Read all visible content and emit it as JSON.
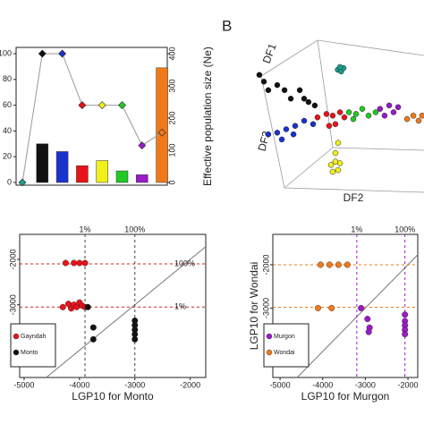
{
  "chart_data": [
    {
      "type": "bar_line",
      "y2_label": "Effective population size (Ne)",
      "categories": [
        null,
        null,
        null,
        null,
        null,
        null,
        null,
        null
      ],
      "ylim": [
        0,
        100
      ],
      "yticks": [
        0,
        20,
        40,
        60,
        80,
        100
      ],
      "y2lim": [
        0,
        400
      ],
      "y2ticks": [
        0,
        100,
        200,
        300,
        400
      ],
      "series": [
        {
          "kind": "bar",
          "colors": [
            "#1a9e8c",
            "#111111",
            "#1a33cc",
            "#e8131a",
            "#f0f01a",
            "#22c922",
            "#9a1ac9",
            "#f07a1a"
          ],
          "values": [
            0,
            30,
            24,
            13,
            17,
            9,
            6,
            89
          ]
        },
        {
          "kind": "line",
          "axis": "y2",
          "color": "#999999",
          "marker_colors": [
            "#1a9e8c",
            "#111111",
            "#1a33cc",
            "#e8131a",
            "#f0f01a",
            "#22c922",
            "#9a1ac9",
            "#f07a1a"
          ],
          "values": [
            0,
            400,
            400,
            240,
            240,
            240,
            115,
            155
          ]
        }
      ]
    },
    {
      "type": "scatter3d",
      "panel_label": "B",
      "x_label": "DF2",
      "y_label": "DF1",
      "z_label": "DF3",
      "xlim": [
        0,
        100
      ],
      "ylim": [
        0,
        100
      ],
      "series": [
        {
          "color": "#111111",
          "x": [
            2.6,
            5.3,
            7.9,
            13.2,
            17.5,
            21.2,
            26.5,
            29.1,
            31.7,
            35.4
          ],
          "y": [
            77,
            73,
            68,
            71,
            68,
            63,
            68,
            63,
            61,
            59
          ]
        },
        {
          "color": "#1a9e8c",
          "x": [
            49,
            51,
            52.4,
            50.3
          ],
          "y": [
            80,
            79,
            81,
            81.6
          ]
        },
        {
          "color": "#1a33cc",
          "x": [
            7.9,
            13.2,
            18.5,
            23.8,
            29.1,
            34.4,
            15.9,
            22.8
          ],
          "y": [
            42,
            43,
            45,
            47,
            50,
            48,
            39,
            42
          ]
        },
        {
          "color": "#e8131a",
          "x": [
            37,
            42.3,
            46,
            47.6,
            50.3,
            52.9,
            43.9
          ],
          "y": [
            52,
            54,
            53,
            48,
            55,
            52,
            47
          ]
        },
        {
          "color": "#f0f01a",
          "x": [
            45,
            47.6,
            49.2,
            46,
            50.3,
            47.6,
            49.2
          ],
          "y": [
            24,
            26,
            21,
            20,
            25,
            31,
            37
          ]
        },
        {
          "color": "#22c922",
          "x": [
            55.6,
            59.8,
            63.5,
            67.2,
            71.4,
            58.2
          ],
          "y": [
            55,
            54,
            57,
            53,
            55,
            51
          ]
        },
        {
          "color": "#9a1ac9",
          "x": [
            74,
            79.4,
            82,
            76.7,
            84.7
          ],
          "y": [
            57,
            59,
            55,
            53,
            58
          ]
        },
        {
          "color": "#f07a1a",
          "x": [
            90,
            93.7,
            96.8,
            98.9
          ],
          "y": [
            51,
            53,
            50,
            53
          ]
        }
      ]
    },
    {
      "type": "scatter",
      "x_label": "LGP10 for Monto",
      "xlim": [
        -5080,
        -1720
      ],
      "ylim": [
        -4600,
        -1450
      ],
      "xticks": [
        -5000,
        -4000,
        -3000,
        -2000
      ],
      "yticks": [
        -3000,
        -2000
      ],
      "diagonal": true,
      "legend": "bottom-left",
      "ref_lines": [
        {
          "axis": "x",
          "value": -3900,
          "label": "1%",
          "color": "#444444"
        },
        {
          "axis": "x",
          "value": -3000,
          "label": "100%",
          "color": "#444444"
        },
        {
          "axis": "y",
          "value": -2100,
          "label": "100%",
          "color": "#cc2222"
        },
        {
          "axis": "y",
          "value": -3050,
          "label": "1%",
          "color": "#cc2222"
        }
      ],
      "series": [
        {
          "name": "Gayndah",
          "color": "#e8131a",
          "x": [
            -4250,
            -4100,
            -4000,
            -3900,
            -4300,
            -4200,
            -4150,
            -4100,
            -4050,
            -4000,
            -3950,
            -3900
          ],
          "y": [
            -2080,
            -2080,
            -2080,
            -2080,
            -3050,
            -2980,
            -3080,
            -3000,
            -3050,
            -2950,
            -3020,
            -3050
          ]
        },
        {
          "name": "Monto",
          "color": "#111111",
          "x": [
            -3850,
            -3750,
            -3750,
            -3000,
            -3000,
            -3000,
            -3000,
            -3000
          ],
          "y": [
            -3050,
            -3500,
            -3760,
            -3350,
            -3450,
            -3550,
            -3650,
            -3760
          ]
        }
      ]
    },
    {
      "type": "scatter",
      "x_label": "LGP10 for Murgon",
      "y_label": "LGP10 for Wondai",
      "xlim": [
        -5170,
        -1770
      ],
      "ylim": [
        -4600,
        -1300
      ],
      "xticks": [
        -5000,
        -4000,
        -3000,
        -2000
      ],
      "yticks": [
        -3000,
        -2000
      ],
      "diagonal": true,
      "legend": "bottom-left",
      "ref_lines": [
        {
          "axis": "x",
          "value": -3200,
          "label": "1%",
          "color": "#9a1ac9"
        },
        {
          "axis": "x",
          "value": -2070,
          "label": "100%",
          "color": "#9a1ac9"
        },
        {
          "axis": "y",
          "value": -2000,
          "color": "#f07a1a"
        },
        {
          "axis": "y",
          "value": -2980,
          "color": "#f07a1a"
        }
      ],
      "series": [
        {
          "name": "Murgon",
          "color": "#9a1ac9",
          "x": [
            -3100,
            -2950,
            -2900,
            -2920,
            -2070,
            -2070,
            -2070,
            -2070,
            -2070
          ],
          "y": [
            -3000,
            -3250,
            -3450,
            -3550,
            -3150,
            -3300,
            -3400,
            -3500,
            -3600
          ]
        },
        {
          "name": "Wondai",
          "color": "#f07a1a",
          "x": [
            -4050,
            -3840,
            -3630,
            -3420,
            -4110,
            -3790
          ],
          "y": [
            -2000,
            -2000,
            -2000,
            -2000,
            -3000,
            -3000
          ]
        }
      ]
    }
  ]
}
